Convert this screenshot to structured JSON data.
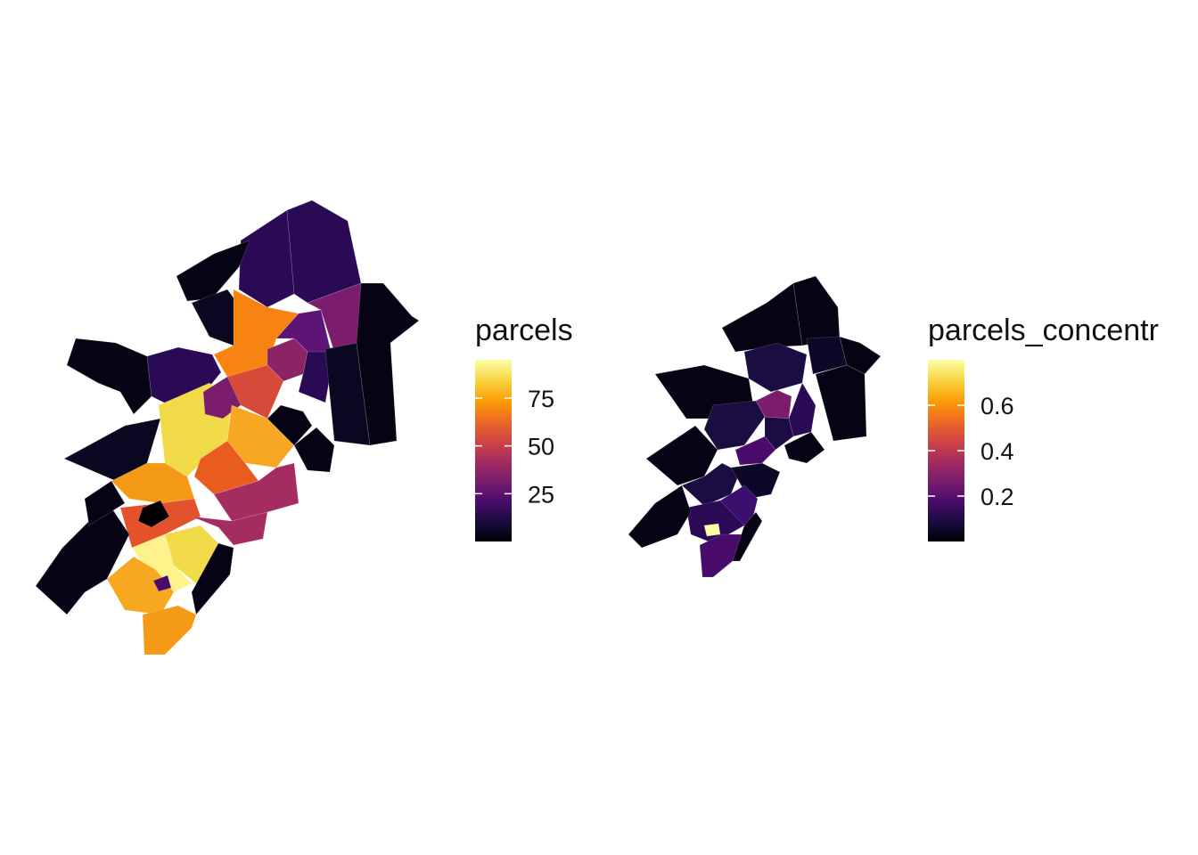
{
  "panels": [
    {
      "id": "parcels",
      "legend": {
        "title": "parcels",
        "ticks": [
          "25",
          "50",
          "75"
        ],
        "tick_values": [
          25,
          50,
          75
        ],
        "range": [
          0,
          95
        ]
      },
      "palette": [
        "#000004",
        "#1b0c41",
        "#4a0c6b",
        "#781c6d",
        "#a52c60",
        "#cf4446",
        "#ed6925",
        "#fb9b06",
        "#f7d13d",
        "#fcffa4"
      ]
    },
    {
      "id": "parcels_concentr",
      "legend": {
        "title": "parcels_concentr",
        "ticks": [
          "0.2",
          "0.4",
          "0.6"
        ],
        "tick_values": [
          0.2,
          0.4,
          0.6
        ],
        "range": [
          0.0,
          0.8
        ]
      },
      "palette": [
        "#000004",
        "#1b0c41",
        "#4a0c6b",
        "#781c6d",
        "#a52c60",
        "#cf4446",
        "#ed6925",
        "#fb9b06",
        "#f7d13d",
        "#fcffa4"
      ]
    }
  ]
}
